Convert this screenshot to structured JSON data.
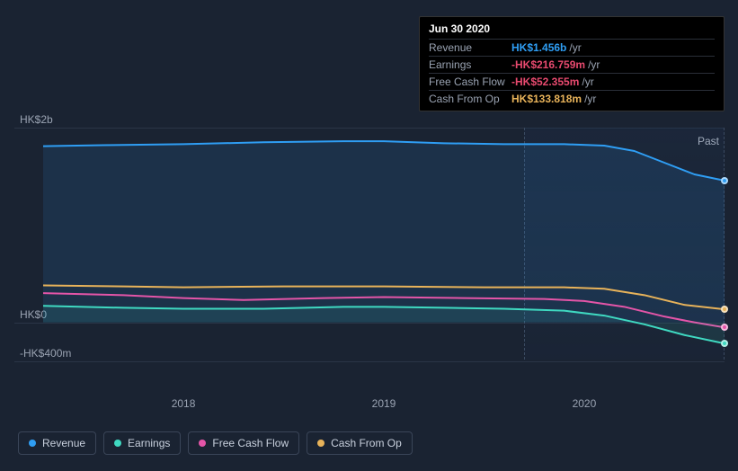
{
  "tooltip": {
    "date": "Jun 30 2020",
    "rows": [
      {
        "label": "Revenue",
        "value": "HK$1.456b",
        "color": "#2f9ef4",
        "unit": "/yr"
      },
      {
        "label": "Earnings",
        "value": "-HK$216.759m",
        "color": "#e84a6f",
        "unit": "/yr"
      },
      {
        "label": "Free Cash Flow",
        "value": "-HK$52.355m",
        "color": "#e84a6f",
        "unit": "/yr"
      },
      {
        "label": "Cash From Op",
        "value": "HK$133.818m",
        "color": "#e8b35a",
        "unit": "/yr"
      }
    ]
  },
  "chart": {
    "type": "area-line",
    "background_color": "#1a2332",
    "grid_color": "#2a3547",
    "text_color": "#9aa3b2",
    "past_label": "Past",
    "y_axis": {
      "ticks": [
        {
          "label": "HK$2b",
          "value": 2000
        },
        {
          "label": "HK$0",
          "value": 0
        },
        {
          "label": "-HK$400m",
          "value": -400
        }
      ],
      "min": -400,
      "max": 2000
    },
    "x_axis": {
      "min": 2017.3,
      "max": 2020.7,
      "ticks": [
        {
          "label": "2018",
          "value": 2018
        },
        {
          "label": "2019",
          "value": 2019
        },
        {
          "label": "2020",
          "value": 2020
        }
      ]
    },
    "cursor_region": {
      "from": 2019.7,
      "to": 2020.7
    },
    "series": [
      {
        "name": "Revenue",
        "color": "#2f9ef4",
        "fill": "rgba(47,158,244,0.12)",
        "width": 2,
        "points": [
          [
            2017.3,
            1810
          ],
          [
            2017.6,
            1820
          ],
          [
            2018.0,
            1830
          ],
          [
            2018.4,
            1850
          ],
          [
            2018.8,
            1860
          ],
          [
            2019.0,
            1860
          ],
          [
            2019.3,
            1840
          ],
          [
            2019.6,
            1830
          ],
          [
            2019.9,
            1830
          ],
          [
            2020.1,
            1815
          ],
          [
            2020.25,
            1760
          ],
          [
            2020.4,
            1640
          ],
          [
            2020.55,
            1520
          ],
          [
            2020.7,
            1456
          ]
        ]
      },
      {
        "name": "Cash From Op",
        "color": "#e8b35a",
        "fill": "none",
        "width": 2,
        "points": [
          [
            2017.3,
            380
          ],
          [
            2017.7,
            370
          ],
          [
            2018.0,
            360
          ],
          [
            2018.5,
            370
          ],
          [
            2019.0,
            370
          ],
          [
            2019.5,
            360
          ],
          [
            2019.9,
            360
          ],
          [
            2020.1,
            345
          ],
          [
            2020.3,
            280
          ],
          [
            2020.5,
            180
          ],
          [
            2020.7,
            134
          ]
        ]
      },
      {
        "name": "Free Cash Flow",
        "color": "#e455a8",
        "fill": "none",
        "width": 2,
        "points": [
          [
            2017.3,
            300
          ],
          [
            2017.7,
            280
          ],
          [
            2018.0,
            250
          ],
          [
            2018.3,
            230
          ],
          [
            2018.7,
            250
          ],
          [
            2019.0,
            260
          ],
          [
            2019.4,
            250
          ],
          [
            2019.8,
            240
          ],
          [
            2020.0,
            220
          ],
          [
            2020.2,
            160
          ],
          [
            2020.4,
            60
          ],
          [
            2020.55,
            0
          ],
          [
            2020.7,
            -52
          ]
        ]
      },
      {
        "name": "Earnings",
        "color": "#3fd9c1",
        "fill": "rgba(63,217,193,0.10)",
        "width": 2,
        "points": [
          [
            2017.3,
            170
          ],
          [
            2017.7,
            150
          ],
          [
            2018.0,
            140
          ],
          [
            2018.4,
            140
          ],
          [
            2018.8,
            160
          ],
          [
            2019.0,
            160
          ],
          [
            2019.3,
            150
          ],
          [
            2019.6,
            140
          ],
          [
            2019.9,
            120
          ],
          [
            2020.1,
            70
          ],
          [
            2020.3,
            -20
          ],
          [
            2020.5,
            -130
          ],
          [
            2020.7,
            -217
          ]
        ]
      }
    ]
  },
  "legend": {
    "items": [
      {
        "label": "Revenue",
        "color": "#2f9ef4"
      },
      {
        "label": "Earnings",
        "color": "#3fd9c1"
      },
      {
        "label": "Free Cash Flow",
        "color": "#e455a8"
      },
      {
        "label": "Cash From Op",
        "color": "#e8b35a"
      }
    ]
  }
}
